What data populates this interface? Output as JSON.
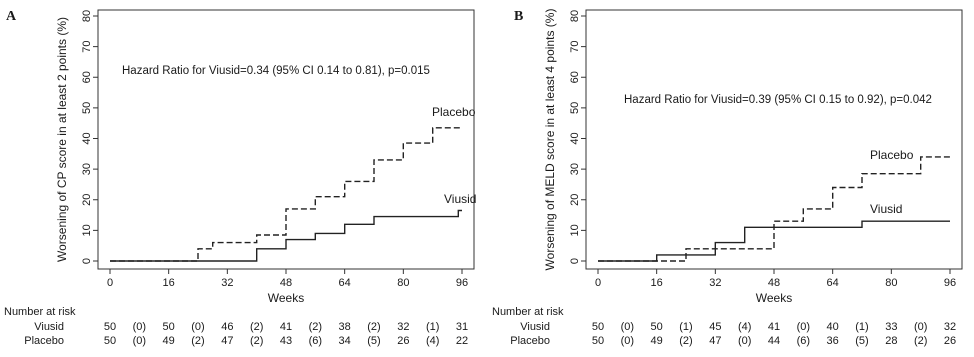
{
  "chart_data": [
    {
      "type": "line",
      "panel_label": "A",
      "xlabel": "Weeks",
      "ylabel": "Worsening of CP score in at least 2 points (%)",
      "xlim": [
        0,
        96
      ],
      "ylim": [
        0,
        80
      ],
      "x_ticks": [
        0,
        16,
        32,
        48,
        64,
        80,
        96
      ],
      "y_ticks": [
        0,
        10,
        20,
        30,
        40,
        50,
        60,
        70,
        80
      ],
      "annotation": "Hazard Ratio for Viusid=0.34 (95% CI 0.14 to 0.81), p=0.015",
      "series": [
        {
          "name": "Viusid",
          "style": "solid",
          "points": [
            [
              0,
              0
            ],
            [
              40,
              0
            ],
            [
              40,
              4
            ],
            [
              48,
              4
            ],
            [
              48,
              7
            ],
            [
              56,
              7
            ],
            [
              56,
              9
            ],
            [
              64,
              9
            ],
            [
              64,
              12
            ],
            [
              72,
              12
            ],
            [
              72,
              14.5
            ],
            [
              95,
              14.5
            ],
            [
              95,
              16.5
            ],
            [
              96,
              16.5
            ]
          ]
        },
        {
          "name": "Placebo",
          "style": "dashed",
          "points": [
            [
              0,
              0
            ],
            [
              24,
              0
            ],
            [
              24,
              4
            ],
            [
              28,
              4
            ],
            [
              28,
              6
            ],
            [
              40,
              6
            ],
            [
              40,
              8.5
            ],
            [
              48,
              8.5
            ],
            [
              48,
              17
            ],
            [
              56,
              17
            ],
            [
              56,
              21
            ],
            [
              64,
              21
            ],
            [
              64,
              26
            ],
            [
              72,
              26
            ],
            [
              72,
              33
            ],
            [
              80,
              33
            ],
            [
              80,
              38.5
            ],
            [
              88,
              38.5
            ],
            [
              88,
              43.5
            ],
            [
              96,
              43.5
            ]
          ]
        }
      ],
      "risk_table": {
        "title": "Number at risk",
        "x": [
          0,
          8,
          16,
          24,
          32,
          40,
          48,
          56,
          64,
          72,
          80,
          88,
          96
        ],
        "rows": [
          {
            "name": "Viusid",
            "values": [
              "50",
              "(0)",
              "50",
              "(0)",
              "46",
              "(2)",
              "41",
              "(2)",
              "38",
              "(2)",
              "32",
              "(1)",
              "31"
            ]
          },
          {
            "name": "Placebo",
            "values": [
              "50",
              "(0)",
              "49",
              "(2)",
              "47",
              "(2)",
              "43",
              "(6)",
              "34",
              "(5)",
              "26",
              "(4)",
              "22"
            ]
          }
        ]
      }
    },
    {
      "type": "line",
      "panel_label": "B",
      "xlabel": "Weeks",
      "ylabel": "Worsening of MELD score in at least 4 points (%)",
      "xlim": [
        0,
        96
      ],
      "ylim": [
        0,
        80
      ],
      "x_ticks": [
        0,
        16,
        32,
        48,
        64,
        80,
        96
      ],
      "y_ticks": [
        0,
        10,
        20,
        30,
        40,
        50,
        60,
        70,
        80
      ],
      "annotation": "Hazard Ratio for Viusid=0.39 (95% CI 0.15 to 0.92), p=0.042",
      "series": [
        {
          "name": "Viusid",
          "style": "solid",
          "points": [
            [
              0,
              0
            ],
            [
              16,
              0
            ],
            [
              16,
              2
            ],
            [
              32,
              2
            ],
            [
              32,
              6
            ],
            [
              40,
              6
            ],
            [
              40,
              11
            ],
            [
              72,
              11
            ],
            [
              72,
              13
            ],
            [
              96,
              13
            ]
          ]
        },
        {
          "name": "Placebo",
          "style": "dashed",
          "points": [
            [
              0,
              0
            ],
            [
              24,
              0
            ],
            [
              24,
              4
            ],
            [
              48,
              4
            ],
            [
              48,
              13
            ],
            [
              56,
              13
            ],
            [
              56,
              17
            ],
            [
              64,
              17
            ],
            [
              64,
              24
            ],
            [
              72,
              24
            ],
            [
              72,
              28.5
            ],
            [
              88,
              28.5
            ],
            [
              88,
              34
            ],
            [
              96,
              34
            ]
          ]
        }
      ],
      "risk_table": {
        "title": "Number at risk",
        "x": [
          0,
          8,
          16,
          24,
          32,
          40,
          48,
          56,
          64,
          72,
          80,
          88,
          96
        ],
        "rows": [
          {
            "name": "Viusid",
            "values": [
              "50",
              "(0)",
              "50",
              "(1)",
              "45",
              "(4)",
              "41",
              "(0)",
              "40",
              "(1)",
              "33",
              "(0)",
              "32"
            ]
          },
          {
            "name": "Placebo",
            "values": [
              "50",
              "(0)",
              "49",
              "(2)",
              "47",
              "(0)",
              "44",
              "(6)",
              "36",
              "(5)",
              "28",
              "(2)",
              "26"
            ]
          }
        ]
      }
    }
  ]
}
